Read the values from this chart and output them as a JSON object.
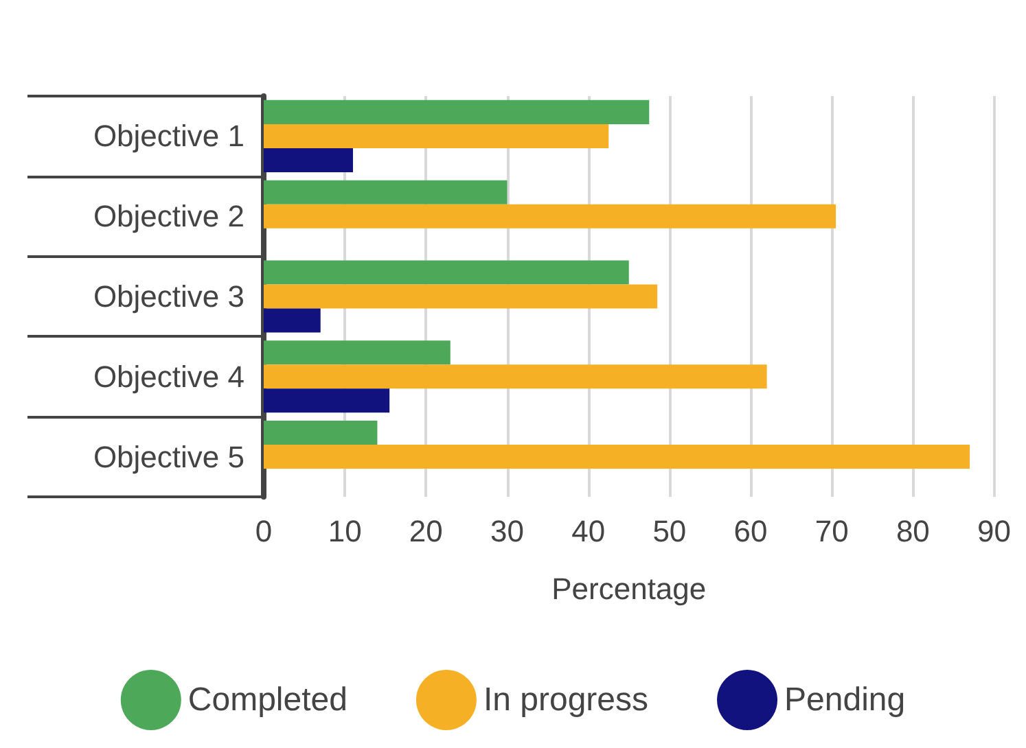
{
  "chart_data": {
    "type": "bar",
    "orientation": "horizontal",
    "xlabel": "Percentage",
    "categories": [
      "Objective 1",
      "Objective 2",
      "Objective 3",
      "Objective 4",
      "Objective 5"
    ],
    "series": [
      {
        "name": "Completed",
        "color": "#4ea85a",
        "values": [
          47.5,
          30,
          45,
          23,
          14
        ]
      },
      {
        "name": "In progress",
        "color": "#f5b025",
        "values": [
          42.5,
          70.5,
          48.5,
          62,
          87
        ]
      },
      {
        "name": "Pending",
        "color": "#11127e",
        "values": [
          11,
          null,
          7,
          15.5,
          null
        ]
      }
    ],
    "xlim": [
      0,
      90
    ],
    "xticks": [
      0,
      10,
      20,
      30,
      40,
      50,
      60,
      70,
      80,
      90
    ],
    "grid": "x",
    "legend": "bottom"
  }
}
